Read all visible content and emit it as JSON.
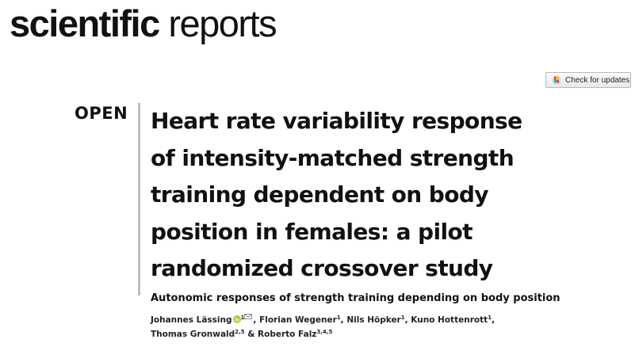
{
  "journal": {
    "name_bold": "scientific",
    "name_light": "reports"
  },
  "check_updates": {
    "label": "Check for updates",
    "icon": "crossmark-icon"
  },
  "article": {
    "open_label": "OPEN",
    "title_lines": [
      "Heart rate variability response",
      "of intensity-matched strength",
      "training dependent on body",
      "position in females: a pilot",
      "randomized crossover study"
    ],
    "subtitle": "Autonomic responses of strength training depending on body position",
    "authors": [
      {
        "name": "Johannes Lässing",
        "sup": "1",
        "orcid": true,
        "corresponding": true
      },
      {
        "name": "Florian Wegener",
        "sup": "1"
      },
      {
        "name": "Nils Höpker",
        "sup": "1"
      },
      {
        "name": "Kuno Hottenrott",
        "sup": "1"
      },
      {
        "name": "Thomas Gronwald",
        "sup": "2,5"
      },
      {
        "name": "Roberto Falz",
        "sup": "3,4,5"
      }
    ],
    "separators": {
      "comma": ", ",
      "and": " & "
    }
  },
  "colors": {
    "orcid_green": "#a6ce39",
    "rule_gray": "#bdbdbd",
    "text": "#111111"
  }
}
